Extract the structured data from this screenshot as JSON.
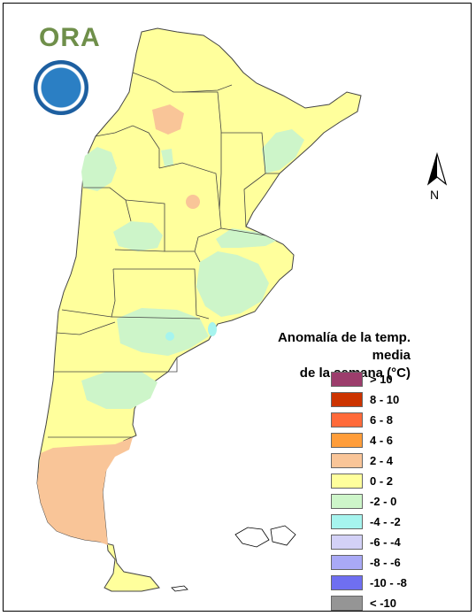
{
  "map": {
    "colors": {
      "background": "#ffffff",
      "warm_0_2": "#ffff9c",
      "warm_2_4": "#f9c598",
      "cool_m2_0": "#cdf5c9",
      "cool_m4_m2": "#a6f4ee",
      "border": "#444444"
    }
  },
  "branding": {
    "ora_logo": "ORA",
    "seal_icon": "smn-seal-icon"
  },
  "north_arrow": {
    "label": "N"
  },
  "legend": {
    "title_line1": "Anomalía de la temp. media",
    "title_line2": "de la semana (°C)",
    "items": [
      {
        "label": "> 10",
        "color": "#9c3d6c"
      },
      {
        "label": "8 - 10",
        "color": "#cc3300"
      },
      {
        "label": "6 - 8",
        "color": "#ff6a3a"
      },
      {
        "label": "4 - 6",
        "color": "#ff9d3a"
      },
      {
        "label": "2 - 4",
        "color": "#f9c598"
      },
      {
        "label": "0 - 2",
        "color": "#ffff9c"
      },
      {
        "label": "-2 - 0",
        "color": "#cdf5c9"
      },
      {
        "label": "-4 - -2",
        "color": "#a6f4ee"
      },
      {
        "label": "-6 - -4",
        "color": "#d3d1f7"
      },
      {
        "label": "-8 - -6",
        "color": "#a9a9f6"
      },
      {
        "label": "-10 - -8",
        "color": "#6f6ff1"
      },
      {
        "label": "< -10",
        "color": "#959595"
      }
    ]
  }
}
